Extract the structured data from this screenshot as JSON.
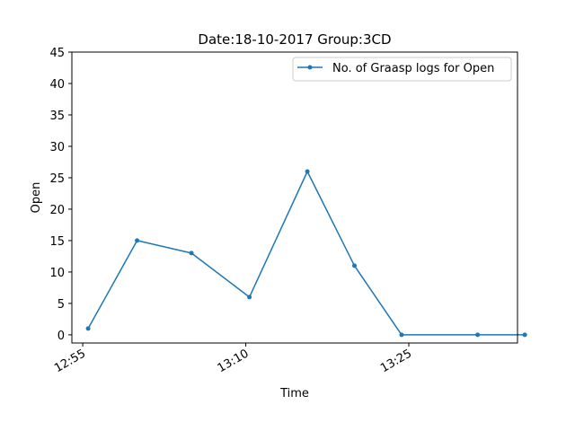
{
  "chart_data": {
    "type": "line",
    "title": "Date:18-10-2017  Group:3CD",
    "xlabel": "Time",
    "ylabel": "Open",
    "x_ticks": [
      "12:55",
      "13:10",
      "13:25"
    ],
    "y_ticks": [
      "0",
      "5",
      "10",
      "15",
      "20",
      "25",
      "30",
      "35",
      "40",
      "45"
    ],
    "ylim": [
      -1.3,
      45
    ],
    "xlim": [
      "12:54",
      "13:35"
    ],
    "grid": false,
    "legend_position": "top-right",
    "color": "#1f77b4",
    "series": [
      {
        "name": "No. of Graasp logs for Open",
        "x": [
          "12:55:30",
          "13:00:00",
          "13:05:00",
          "13:10:20",
          "13:15:40",
          "13:20:00",
          "13:24:20",
          "13:31:20",
          "13:35:40"
        ],
        "values": [
          1,
          15,
          13,
          6,
          26,
          11,
          0,
          0,
          0
        ]
      }
    ]
  }
}
